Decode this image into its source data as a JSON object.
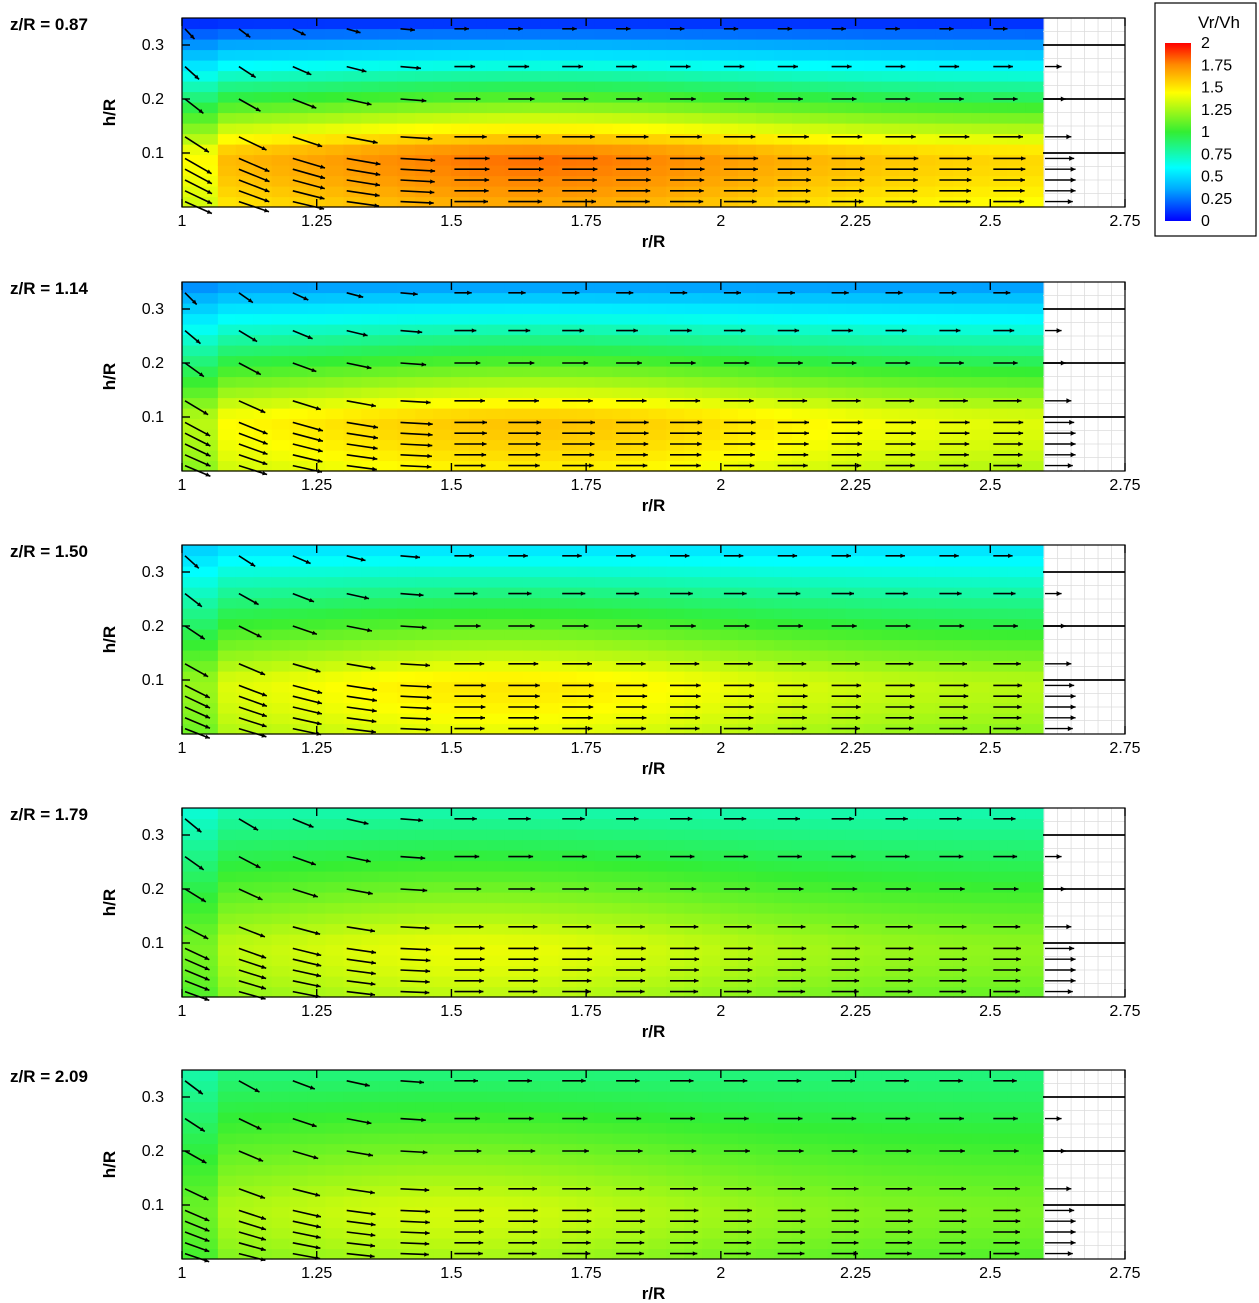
{
  "chart_data": {
    "type": "heatmap",
    "subtype": "contour-with-vectors",
    "xlabel": "r/R",
    "ylabel": "h/R",
    "xlim": [
      1,
      2.75
    ],
    "ylim": [
      0,
      0.35
    ],
    "x_ticks": [
      "1",
      "1.25",
      "1.5",
      "1.75",
      "2",
      "2.25",
      "2.5",
      "2.75"
    ],
    "y_ticks": [
      "0.1",
      "0.2",
      "0.3"
    ],
    "data_extent_r": [
      1,
      2.6
    ],
    "colorbar": {
      "title": "Vr/Vh",
      "ticks": [
        "2",
        "1.75",
        "1.5",
        "1.25",
        "1",
        "0.75",
        "0.5",
        "0.25",
        "0"
      ],
      "range": [
        0,
        2
      ],
      "colors": [
        "#0000ff",
        "#00aaff",
        "#00ffff",
        "#33ee33",
        "#ffff00",
        "#ff8800",
        "#ff0000"
      ]
    },
    "reference_profile_vr": [
      {
        "h": 0.01,
        "vr": 1.7
      },
      {
        "h": 0.03,
        "vr": 1.9
      },
      {
        "h": 0.05,
        "vr": 1.9
      },
      {
        "h": 0.07,
        "vr": 1.9
      },
      {
        "h": 0.09,
        "vr": 1.8
      },
      {
        "h": 0.13,
        "vr": 1.6
      },
      {
        "h": 0.2,
        "vr": 1.2
      },
      {
        "h": 0.26,
        "vr": 0.9
      }
    ],
    "panels": [
      {
        "label": "z/R = 0.87",
        "peak_vr": 1.8,
        "peak_r": 1.65,
        "top_vr": 0.05
      },
      {
        "label": "z/R = 1.14",
        "peak_vr": 1.6,
        "peak_r": 1.65,
        "top_vr": 0.3
      },
      {
        "label": "z/R = 1.50",
        "peak_vr": 1.5,
        "peak_r": 1.6,
        "top_vr": 0.5
      },
      {
        "label": "z/R = 1.79",
        "peak_vr": 1.4,
        "peak_r": 1.55,
        "top_vr": 0.75
      },
      {
        "label": "z/R = 2.09",
        "peak_vr": 1.35,
        "peak_r": 1.5,
        "top_vr": 0.85
      }
    ]
  }
}
